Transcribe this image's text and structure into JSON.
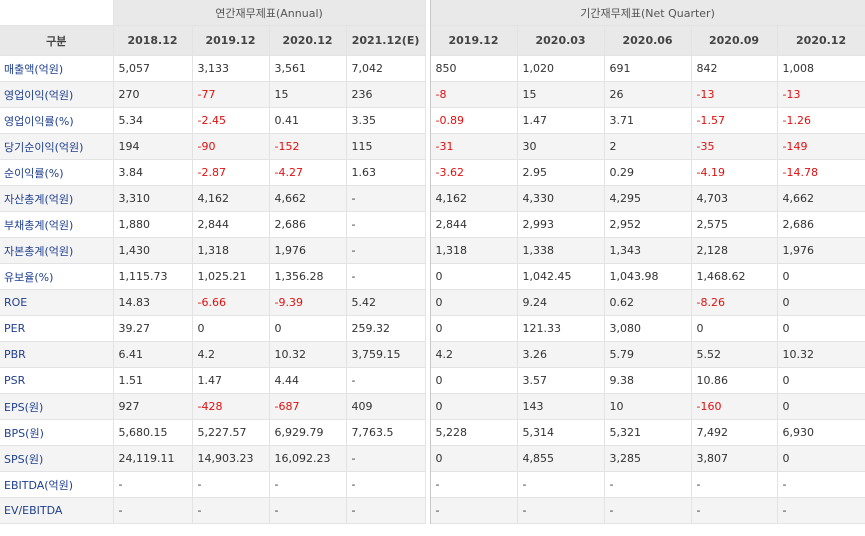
{
  "header": {
    "label_col": "구분",
    "annual_title": "연간재무제표(Annual)",
    "quarter_title": "기간재무제표(Net Quarter)",
    "annual_periods": [
      "2018.12",
      "2019.12",
      "2020.12",
      "2021.12(E)"
    ],
    "quarter_periods": [
      "2019.12",
      "2020.03",
      "2020.06",
      "2020.09",
      "2020.12"
    ]
  },
  "rows": [
    {
      "label": "매출액(억원)",
      "annual": [
        "5,057",
        "3,133",
        "3,561",
        "7,042"
      ],
      "quarter": [
        "850",
        "1,020",
        "691",
        "842",
        "1,008"
      ]
    },
    {
      "label": "영업이익(억원)",
      "annual": [
        "270",
        "-77",
        "15",
        "236"
      ],
      "quarter": [
        "-8",
        "15",
        "26",
        "-13",
        "-13"
      ]
    },
    {
      "label": "영업이익률(%)",
      "annual": [
        "5.34",
        "-2.45",
        "0.41",
        "3.35"
      ],
      "quarter": [
        "-0.89",
        "1.47",
        "3.71",
        "-1.57",
        "-1.26"
      ]
    },
    {
      "label": "당기순이익(억원)",
      "annual": [
        "194",
        "-90",
        "-152",
        "115"
      ],
      "quarter": [
        "-31",
        "30",
        "2",
        "-35",
        "-149"
      ]
    },
    {
      "label": "순이익률(%)",
      "annual": [
        "3.84",
        "-2.87",
        "-4.27",
        "1.63"
      ],
      "quarter": [
        "-3.62",
        "2.95",
        "0.29",
        "-4.19",
        "-14.78"
      ]
    },
    {
      "label": "자산총계(억원)",
      "annual": [
        "3,310",
        "4,162",
        "4,662",
        "-"
      ],
      "quarter": [
        "4,162",
        "4,330",
        "4,295",
        "4,703",
        "4,662"
      ]
    },
    {
      "label": "부채총계(억원)",
      "annual": [
        "1,880",
        "2,844",
        "2,686",
        "-"
      ],
      "quarter": [
        "2,844",
        "2,993",
        "2,952",
        "2,575",
        "2,686"
      ]
    },
    {
      "label": "자본총계(억원)",
      "annual": [
        "1,430",
        "1,318",
        "1,976",
        "-"
      ],
      "quarter": [
        "1,318",
        "1,338",
        "1,343",
        "2,128",
        "1,976"
      ]
    },
    {
      "label": "유보율(%)",
      "annual": [
        "1,115.73",
        "1,025.21",
        "1,356.28",
        "-"
      ],
      "quarter": [
        "0",
        "1,042.45",
        "1,043.98",
        "1,468.62",
        "0"
      ]
    },
    {
      "label": "ROE",
      "annual": [
        "14.83",
        "-6.66",
        "-9.39",
        "5.42"
      ],
      "quarter": [
        "0",
        "9.24",
        "0.62",
        "-8.26",
        "0"
      ]
    },
    {
      "label": "PER",
      "annual": [
        "39.27",
        "0",
        "0",
        "259.32"
      ],
      "quarter": [
        "0",
        "121.33",
        "3,080",
        "0",
        "0"
      ]
    },
    {
      "label": "PBR",
      "annual": [
        "6.41",
        "4.2",
        "10.32",
        "3,759.15"
      ],
      "quarter": [
        "4.2",
        "3.26",
        "5.79",
        "5.52",
        "10.32"
      ]
    },
    {
      "label": "PSR",
      "annual": [
        "1.51",
        "1.47",
        "4.44",
        "-"
      ],
      "quarter": [
        "0",
        "3.57",
        "9.38",
        "10.86",
        "0"
      ]
    },
    {
      "label": "EPS(원)",
      "annual": [
        "927",
        "-428",
        "-687",
        "409"
      ],
      "quarter": [
        "0",
        "143",
        "10",
        "-160",
        "0"
      ]
    },
    {
      "label": "BPS(원)",
      "annual": [
        "5,680.15",
        "5,227.57",
        "6,929.79",
        "7,763.5"
      ],
      "quarter": [
        "5,228",
        "5,314",
        "5,321",
        "7,492",
        "6,930"
      ]
    },
    {
      "label": "SPS(원)",
      "annual": [
        "24,119.11",
        "14,903.23",
        "16,092.23",
        "-"
      ],
      "quarter": [
        "0",
        "4,855",
        "3,285",
        "3,807",
        "0"
      ]
    },
    {
      "label": "EBITDA(억원)",
      "annual": [
        "-",
        "-",
        "-",
        "-"
      ],
      "quarter": [
        "-",
        "-",
        "-",
        "-",
        "-"
      ]
    },
    {
      "label": "EV/EBITDA",
      "annual": [
        "-",
        "-",
        "-",
        "-"
      ],
      "quarter": [
        "-",
        "-",
        "-",
        "-",
        "-"
      ]
    }
  ]
}
